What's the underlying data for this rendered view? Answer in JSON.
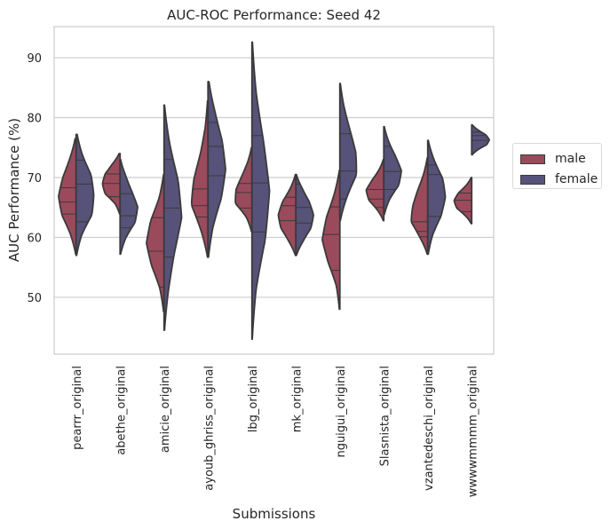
{
  "chart_data": {
    "type": "violin",
    "title": "AUC-ROC Performance: Seed 42",
    "xlabel": "Submissions",
    "ylabel": "AUC Performance (%)",
    "ylim": [
      40.5,
      95.2
    ],
    "yticks": [
      50,
      60,
      70,
      80,
      90
    ],
    "grid": true,
    "legend_position": "right",
    "categories": [
      "pearrr_original",
      "abethe_original",
      "amicie_original",
      "ayoub_ghriss_original",
      "lbg_original",
      "mk_original",
      "nguigui_original",
      "Slasnista_original",
      "vzantedeschi_original",
      "wwwwmmmm_original"
    ],
    "series": [
      {
        "name": "male",
        "color": "#9b4a5c",
        "min": [
          57.2,
          63.9,
          47.6,
          56.7,
          61,
          57,
          48,
          62.8,
          57.2,
          62.3
        ],
        "max": [
          76.5,
          74,
          70.5,
          82.8,
          75,
          70.5,
          71.2,
          73,
          73.3,
          70
        ],
        "quartiles": [
          [
            63.9,
            65.9,
            68.3
          ],
          [
            66.8,
            69,
            70.6
          ],
          [
            51.7,
            57.7,
            63.3
          ],
          [
            63.4,
            65.3,
            68.1
          ],
          [
            64.9,
            67.5,
            69
          ],
          [
            62.8,
            65.3,
            66.7
          ],
          [
            54.5,
            60.5,
            65.1
          ],
          [
            65,
            66.4,
            68
          ],
          [
            60.1,
            61,
            62.6
          ],
          [
            64.3,
            66.2,
            67.4
          ]
        ],
        "profile": [
          [
            0.05,
            0.4,
            0.85,
            1,
            0.8,
            0.45,
            0.1
          ],
          [
            0.05,
            0.35,
            0.9,
            1,
            0.9,
            0.55,
            0.1
          ],
          [
            0.05,
            0.3,
            0.75,
            1,
            0.8,
            0.35,
            0.05
          ],
          [
            0.05,
            0.5,
            1,
            0.8,
            0.45,
            0.2,
            0.05
          ],
          [
            0.05,
            0.4,
            1,
            0.9,
            0.6,
            0.3,
            0.05
          ],
          [
            0.05,
            0.5,
            0.9,
            1,
            0.8,
            0.4,
            0.05
          ],
          [
            0.05,
            0.25,
            0.7,
            1,
            0.8,
            0.4,
            0.05
          ],
          [
            0.05,
            0.45,
            0.9,
            1,
            0.7,
            0.35,
            0.05
          ],
          [
            0.05,
            0.55,
            1,
            0.85,
            0.6,
            0.3,
            0.05
          ],
          [
            0.05,
            0.45,
            0.9,
            1,
            0.8,
            0.4,
            0.05
          ]
        ]
      },
      {
        "name": "female",
        "color": "#575279",
        "min": [
          57,
          57.2,
          44.5,
          56.7,
          43,
          57,
          62.8,
          63.8,
          57.2,
          73.8
        ],
        "max": [
          77.2,
          73,
          82.1,
          86,
          92.6,
          70.5,
          85.7,
          78.5,
          76.2,
          78.8
        ],
        "quartiles": [
          [
            62.6,
            68.9,
            72.9
          ],
          [
            61.6,
            63.6,
            67.3
          ],
          [
            56.7,
            64.9,
            73
          ],
          [
            70.3,
            75.2,
            79.2
          ],
          [
            60.9,
            69.1,
            77
          ],
          [
            62.4,
            65,
            68.9
          ],
          [
            66.4,
            71.1,
            77.3
          ],
          [
            68,
            71,
            75.2
          ],
          [
            63.5,
            70.5,
            72.1
          ],
          [
            76.2,
            77,
            77.6
          ]
        ],
        "profile": [
          [
            0.05,
            0.4,
            0.95,
            1,
            0.9,
            0.45,
            0.1
          ],
          [
            0.05,
            0.4,
            0.9,
            1,
            0.7,
            0.4,
            0.05
          ],
          [
            0.05,
            0.3,
            0.6,
            1,
            0.85,
            0.4,
            0.05
          ],
          [
            0.05,
            0.35,
            0.8,
            1,
            0.85,
            0.5,
            0.1
          ],
          [
            0.03,
            0.3,
            0.8,
            1,
            0.7,
            0.3,
            0.05
          ],
          [
            0.05,
            0.5,
            0.9,
            1,
            0.8,
            0.45,
            0.05
          ],
          [
            0.05,
            0.5,
            1,
            0.9,
            0.6,
            0.3,
            0.05
          ],
          [
            0.05,
            0.4,
            0.9,
            1,
            0.7,
            0.35,
            0.05
          ],
          [
            0.05,
            0.35,
            0.8,
            1,
            0.9,
            0.45,
            0.05
          ],
          [
            0.05,
            0.45,
            0.9,
            1,
            0.85,
            0.45,
            0.05
          ]
        ]
      }
    ]
  }
}
